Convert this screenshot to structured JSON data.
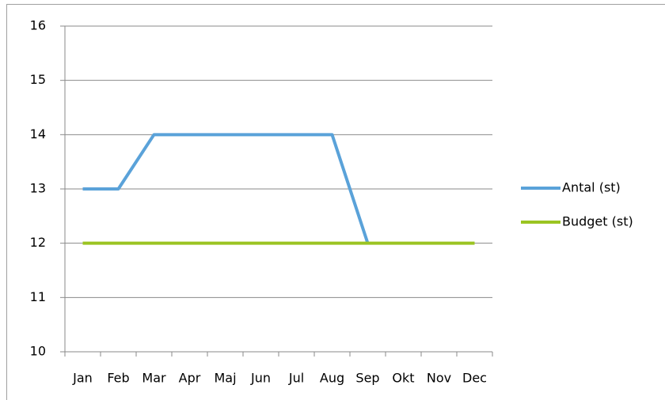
{
  "chart_data": {
    "type": "line",
    "categories": [
      "Jan",
      "Feb",
      "Mar",
      "Apr",
      "Maj",
      "Jun",
      "Jul",
      "Aug",
      "Sep",
      "Okt",
      "Nov",
      "Dec"
    ],
    "series": [
      {
        "name": "Antal (st)",
        "color": "#5aa2d9",
        "values": [
          13,
          13,
          14,
          14,
          14,
          14,
          14,
          14,
          12,
          null,
          null,
          null
        ]
      },
      {
        "name": "Budget (st)",
        "color": "#9bc422",
        "values": [
          12,
          12,
          12,
          12,
          12,
          12,
          12,
          12,
          12,
          12,
          12,
          12
        ]
      }
    ],
    "ylim": [
      10,
      16
    ],
    "yticks": [
      10,
      11,
      12,
      13,
      14,
      15,
      16
    ],
    "grid": true,
    "legend": "right"
  }
}
